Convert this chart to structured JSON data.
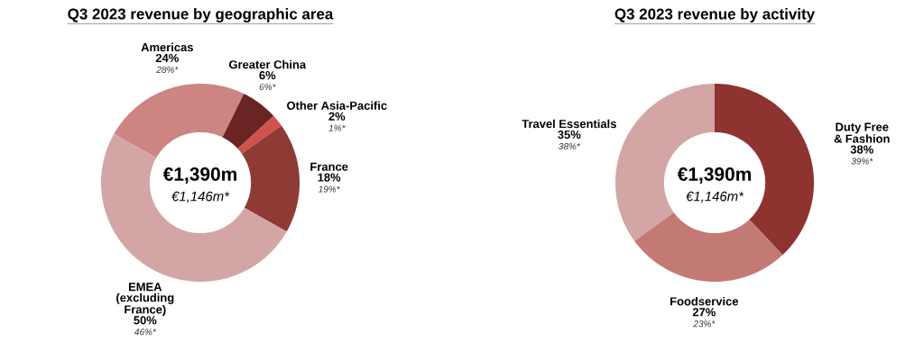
{
  "chart_data": [
    {
      "type": "donut",
      "title": "Q3 2023 revenue by geographic area",
      "categories": [
        "Americas",
        "Greater China",
        "Other Asia-Pacific",
        "France",
        "EMEA (excluding France)"
      ],
      "values": [
        24,
        6,
        2,
        18,
        50
      ],
      "colors": [
        "#cc8580",
        "#6b2424",
        "#d0524a",
        "#8e3a35",
        "#d4a5a5"
      ],
      "value_labels": [
        "24%",
        "6%",
        "2%",
        "18%",
        "50%"
      ],
      "annotations": [
        "€1,390m",
        "€1,146m*",
        "28%*",
        "6%*",
        "1%*",
        "19%*",
        "46%*"
      ]
    },
    {
      "type": "donut",
      "title": "Q3 2023 revenue by activity",
      "categories": [
        "Duty Free & Fashion",
        "Foodservice",
        "Travel Essentials"
      ],
      "values": [
        38,
        27,
        35
      ],
      "colors": [
        "#8e3330",
        "#c47a74",
        "#d4a5a5"
      ],
      "value_labels": [
        "38%",
        "27%",
        "35%"
      ],
      "annotations": [
        "€1,390m",
        "€1,146m*",
        "39%*",
        "23%*",
        "38%*"
      ]
    }
  ]
}
